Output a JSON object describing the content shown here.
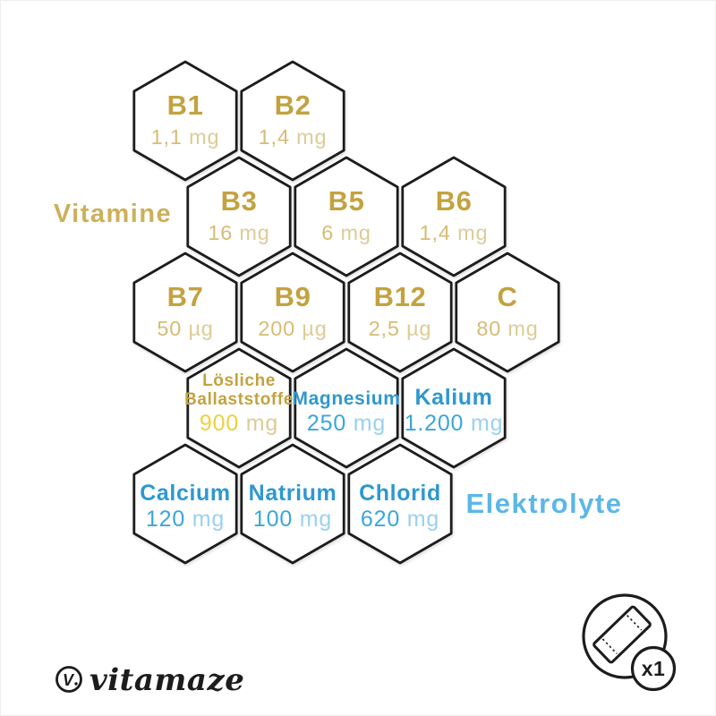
{
  "colors": {
    "background": "#ffffff",
    "outline": "#1c1c1c",
    "hex_fill": "#ffffff"
  },
  "groups": [
    {
      "id": "vitamine",
      "label": "Vitamine",
      "label_color": "#ccb05a",
      "name_color": "#c3a23f",
      "number_color": "#d6bc74",
      "unit_color": "#ddcc97"
    },
    {
      "id": "elektrolyte",
      "label": "Elektrolyte",
      "label_color": "#5cb7e7",
      "name_color": "#2e98cf",
      "number_color": "#3aa6db",
      "unit_color": "#9ad1ee"
    }
  ],
  "labels": {
    "vitamine": "Vitamine",
    "elektrolyte": "Elektrolyte"
  },
  "hexagons": [
    {
      "name": "B1",
      "number": "1,1",
      "unit": "mg",
      "group": "vitamine"
    },
    {
      "name": "B2",
      "number": "1,4",
      "unit": "mg",
      "group": "vitamine"
    },
    {
      "name": "B3",
      "number": "16",
      "unit": "mg",
      "group": "vitamine"
    },
    {
      "name": "B5",
      "number": "6",
      "unit": "mg",
      "group": "vitamine"
    },
    {
      "name": "B6",
      "number": "1,4",
      "unit": "mg",
      "group": "vitamine"
    },
    {
      "name": "B7",
      "number": "50",
      "unit": "µg",
      "group": "vitamine"
    },
    {
      "name": "B9",
      "number": "200",
      "unit": "µg",
      "group": "vitamine"
    },
    {
      "name": "B12",
      "number": "2,5",
      "unit": "µg",
      "group": "vitamine"
    },
    {
      "name": "C",
      "number": "80",
      "unit": "mg",
      "group": "vitamine"
    },
    {
      "name": "Lösliche Ballaststoffe",
      "name_lines": [
        "Lösliche",
        "Ballaststoffe"
      ],
      "number": "900",
      "unit": "mg",
      "group": "vitamine",
      "number_color": "#ecd13d"
    },
    {
      "name": "Magnesium",
      "number": "250",
      "unit": "mg",
      "group": "elektrolyte"
    },
    {
      "name": "Kalium",
      "number": "1.200",
      "unit": "mg",
      "group": "elektrolyte"
    },
    {
      "name": "Calcium",
      "number": "120",
      "unit": "mg",
      "group": "elektrolyte"
    },
    {
      "name": "Natrium",
      "number": "100",
      "unit": "mg",
      "group": "elektrolyte"
    },
    {
      "name": "Chlorid",
      "number": "620",
      "unit": "mg",
      "group": "elektrolyte"
    }
  ],
  "logo": {
    "mark": "V",
    "text": "vitamaze"
  },
  "dose_badge": {
    "label": "x1"
  }
}
